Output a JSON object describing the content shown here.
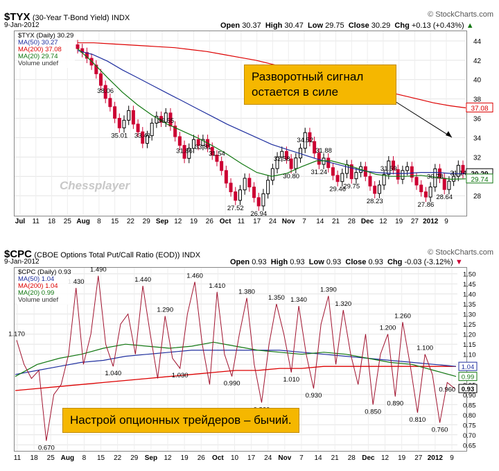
{
  "top": {
    "symbol": "$TYX",
    "name": "(30-Year T-Bond Yield)",
    "exchange": "INDX",
    "date": "9-Jan-2012",
    "open_lbl": "Open",
    "open": "30.37",
    "high_lbl": "High",
    "high": "30.47",
    "low_lbl": "Low",
    "low": "29.75",
    "close_lbl": "Close",
    "close": "30.29",
    "chg_lbl": "Chg",
    "chg": "+0.13 (+0.43%)",
    "brand": "© StockCharts.com",
    "legend": [
      "$TYX (Daily) 30.29",
      "MA(50) 30.27",
      "MA(200) 37.08",
      "MA(20) 29.74",
      "Volume undef"
    ],
    "callout": "Разворотный сигнал\nостается в силе",
    "watermark": "Chessplayer",
    "y_ticks": [
      "44",
      "42",
      "40",
      "38",
      "36",
      "34",
      "32",
      "30",
      "28"
    ],
    "price_tags": [
      "37.08",
      "30.29",
      "29.74"
    ],
    "x_ticks": [
      "Jul",
      "11",
      "18",
      "25",
      "Aug",
      "8",
      "15",
      "22",
      "29",
      "Sep",
      "12",
      "19",
      "26",
      "Oct",
      "11",
      "17",
      "24",
      "Nov",
      "7",
      "14",
      "21",
      "28",
      "Dec",
      "12",
      "19",
      "27",
      "2012",
      "9"
    ],
    "annotations": [
      "38.06",
      "35.01",
      "33.41",
      "36.55",
      "31.86",
      "33.81",
      "31.54",
      "27.52",
      "26.94",
      "32.58",
      "30.80",
      "34.52",
      "31.88",
      "31.24",
      "29.46",
      "29.75",
      "28.23",
      "31.59",
      "27.86",
      "30.78",
      "28.64",
      "31.14"
    ],
    "colors": {
      "up": "#000000",
      "down": "#cc0033",
      "ma50": "#1f2f9f",
      "ma200": "#dd0000",
      "ma20": "#117711"
    }
  },
  "bottom": {
    "symbol": "$CPC",
    "name": "(CBOE Options Total Put/Call Ratio (EOD))",
    "exchange": "INDX",
    "date": "9-Jan-2012",
    "open_lbl": "Open",
    "open": "0.93",
    "high_lbl": "High",
    "high": "0.93",
    "low_lbl": "Low",
    "low": "0.93",
    "close_lbl": "Close",
    "close": "0.93",
    "chg_lbl": "Chg",
    "chg": "-0.03 (-3.12%)",
    "brand": "© StockCharts.com",
    "legend": [
      "$CPC (Daily) 0.93",
      "MA(50) 1.04",
      "MA(200) 1.04",
      "MA(20) 0.99",
      "Volume undef"
    ],
    "callout": "Настрой опционных трейдеров – бычий.",
    "y_ticks": [
      "1.50",
      "1.45",
      "1.40",
      "1.35",
      "1.30",
      "1.25",
      "1.20",
      "1.15",
      "1.10",
      "1.05",
      "1.00",
      "0.95",
      "0.90",
      "0.85",
      "0.80",
      "0.75",
      "0.70",
      "0.65"
    ],
    "price_tags": [
      "1.04",
      "0.99",
      "0.93"
    ],
    "x_ticks": [
      "11",
      "18",
      "25",
      "Aug",
      "8",
      "15",
      "22",
      "29",
      "Sep",
      "12",
      "19",
      "26",
      "Oct",
      "10",
      "17",
      "24",
      "Nov",
      "7",
      "14",
      "21",
      "28",
      "Dec",
      "12",
      "19",
      "27",
      "2012",
      "9"
    ],
    "annotations": [
      "1.170",
      "0.670",
      "1.430",
      "1.490",
      "1.040",
      "1.440",
      "1.290",
      "1.030",
      "1.460",
      "1.410",
      "0.990",
      "1.380",
      "0.860",
      "1.350",
      "1.010",
      "1.340",
      "0.930",
      "1.390",
      "1.320",
      "0.850",
      "1.200",
      "0.890",
      "1.260",
      "0.810",
      "1.100",
      "0.760",
      "0.960"
    ]
  },
  "chart_data": [
    {
      "type": "candlestick",
      "title": "$TYX (30-Year T-Bond Yield) INDX",
      "ylim": [
        26,
        45
      ],
      "series": [
        {
          "name": "$TYX (Daily)",
          "values": [
            43.2,
            42.8,
            42.2,
            41.5,
            40.6,
            39.4,
            38.06,
            37.2,
            36.0,
            35.01,
            35.8,
            36.8,
            35.4,
            34.6,
            33.41,
            34.2,
            35.5,
            36.2,
            35.6,
            36.55,
            35.2,
            34.1,
            33.2,
            31.86,
            32.9,
            33.8,
            33.2,
            33.81,
            33.0,
            32.2,
            31.54,
            30.6,
            29.3,
            28.4,
            27.52,
            28.6,
            29.8,
            28.9,
            27.8,
            26.94,
            28.2,
            29.6,
            30.8,
            32.0,
            32.58,
            31.8,
            30.8,
            31.9,
            32.9,
            34.52,
            33.6,
            32.4,
            31.24,
            31.88,
            30.9,
            30.1,
            29.46,
            30.3,
            31.2,
            29.75,
            30.4,
            31.0,
            30.0,
            29.0,
            28.23,
            29.1,
            30.2,
            31.59,
            30.7,
            29.7,
            30.6,
            31.0,
            29.9,
            29.1,
            28.4,
            27.86,
            28.9,
            30.78,
            29.8,
            28.64,
            29.5,
            30.0,
            31.14,
            30.29
          ]
        },
        {
          "name": "MA(50)",
          "values": [
            43.0,
            42.6,
            41.9,
            41.0,
            40.2,
            39.4,
            38.6,
            37.8,
            37.0,
            36.2,
            35.4,
            34.7,
            34.0,
            33.3,
            32.8,
            32.3,
            31.8,
            31.4,
            31.0,
            30.6,
            30.4,
            30.3,
            30.3,
            30.4,
            30.4,
            30.3,
            30.27
          ]
        },
        {
          "name": "MA(200)",
          "values": [
            43.8,
            43.8,
            43.7,
            43.6,
            43.5,
            43.4,
            43.3,
            43.1,
            42.9,
            42.6,
            42.3,
            42.0,
            41.6,
            41.2,
            40.8,
            40.4,
            40.0,
            39.6,
            39.2,
            38.8,
            38.4,
            38.0,
            37.6,
            37.3,
            37.08
          ]
        },
        {
          "name": "MA(20)",
          "values": [
            43.2,
            41.8,
            40.2,
            38.7,
            37.4,
            36.3,
            35.4,
            34.7,
            34.0,
            33.2,
            32.3,
            31.3,
            30.4,
            30.0,
            30.3,
            31.0,
            31.6,
            31.6,
            31.2,
            30.7,
            30.2,
            30.0,
            30.0,
            30.1,
            29.9,
            29.7,
            29.74
          ]
        }
      ]
    },
    {
      "type": "line",
      "title": "$CPC (CBOE Options Total Put/Call Ratio (EOD)) INDX",
      "ylim": [
        0.62,
        1.53
      ],
      "series": [
        {
          "name": "$CPC (Daily)",
          "values": [
            1.17,
            1.05,
            0.98,
            1.02,
            0.67,
            0.9,
            0.95,
            1.1,
            1.43,
            1.05,
            1.2,
            1.49,
            1.15,
            1.04,
            1.25,
            1.3,
            1.1,
            1.44,
            1.2,
            0.98,
            1.29,
            1.08,
            1.03,
            1.3,
            1.46,
            1.15,
            0.95,
            1.41,
            1.1,
            0.99,
            1.2,
            1.38,
            1.05,
            0.86,
            1.15,
            1.35,
            1.2,
            1.01,
            1.34,
            1.1,
            0.93,
            1.25,
            1.39,
            1.05,
            1.32,
            1.1,
            0.95,
            1.2,
            0.85,
            1.1,
            1.2,
            0.89,
            1.26,
            1.05,
            0.81,
            1.1,
            1.0,
            0.76,
            0.96,
            0.93
          ]
        },
        {
          "name": "MA(50)",
          "values": [
            1.0,
            1.02,
            1.04,
            1.06,
            1.07,
            1.09,
            1.1,
            1.11,
            1.12,
            1.12,
            1.12,
            1.12,
            1.12,
            1.11,
            1.1,
            1.09,
            1.08,
            1.07,
            1.06,
            1.05,
            1.04
          ]
        },
        {
          "name": "MA(200)",
          "values": [
            0.92,
            0.93,
            0.94,
            0.95,
            0.96,
            0.97,
            0.98,
            0.99,
            1.0,
            1.01,
            1.02,
            1.02,
            1.03,
            1.03,
            1.04,
            1.04,
            1.04,
            1.04,
            1.04,
            1.04,
            1.04
          ]
        },
        {
          "name": "MA(20)",
          "values": [
            0.99,
            1.05,
            1.08,
            1.1,
            1.13,
            1.15,
            1.14,
            1.13,
            1.14,
            1.16,
            1.14,
            1.12,
            1.11,
            1.1,
            1.11,
            1.1,
            1.08,
            1.06,
            1.05,
            1.02,
            0.99
          ]
        }
      ]
    }
  ]
}
